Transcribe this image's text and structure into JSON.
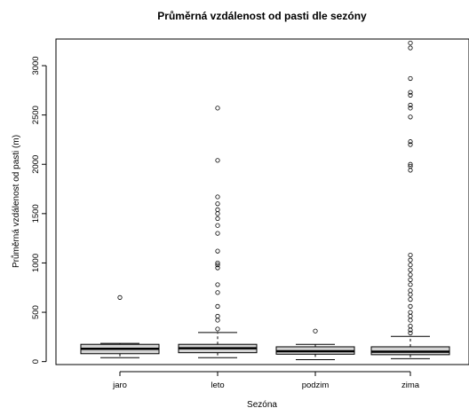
{
  "chart_data": {
    "type": "boxplot",
    "title": "Průměrná vzdálenost od pasti dle sezóny",
    "xlabel": "Sezóna",
    "ylabel": "Průměrná vzdálenost od pasti (m)",
    "ylim": [
      -30,
      3270
    ],
    "yticks": [
      0,
      500,
      1000,
      1500,
      2000,
      2500,
      3000
    ],
    "categories": [
      "jaro",
      "leto",
      "podzim",
      "zima"
    ],
    "boxes": [
      {
        "category": "jaro",
        "whisker_low": 40,
        "q1": 80,
        "median": 130,
        "q3": 175,
        "whisker_high": 185,
        "outliers": [
          650
        ]
      },
      {
        "category": "leto",
        "whisker_low": 40,
        "q1": 90,
        "median": 135,
        "q3": 175,
        "whisker_high": 295,
        "outliers": [
          330,
          420,
          460,
          560,
          700,
          780,
          950,
          980,
          1000,
          1120,
          1300,
          1380,
          1450,
          1500,
          1540,
          1600,
          1670,
          2040,
          2570
        ]
      },
      {
        "category": "podzim",
        "whisker_low": 20,
        "q1": 75,
        "median": 105,
        "q3": 150,
        "whisker_high": 175,
        "outliers": [
          310
        ]
      },
      {
        "category": "zima",
        "whisker_low": 30,
        "q1": 70,
        "median": 100,
        "q3": 150,
        "whisker_high": 255,
        "outliers": [
          290,
          320,
          360,
          420,
          460,
          500,
          560,
          630,
          680,
          720,
          780,
          830,
          880,
          930,
          980,
          1030,
          1080,
          1940,
          1980,
          2000,
          2200,
          2230,
          2480,
          2570,
          2600,
          2700,
          2730,
          2870,
          3180,
          3230
        ]
      }
    ],
    "grid": false,
    "legend": "none"
  }
}
